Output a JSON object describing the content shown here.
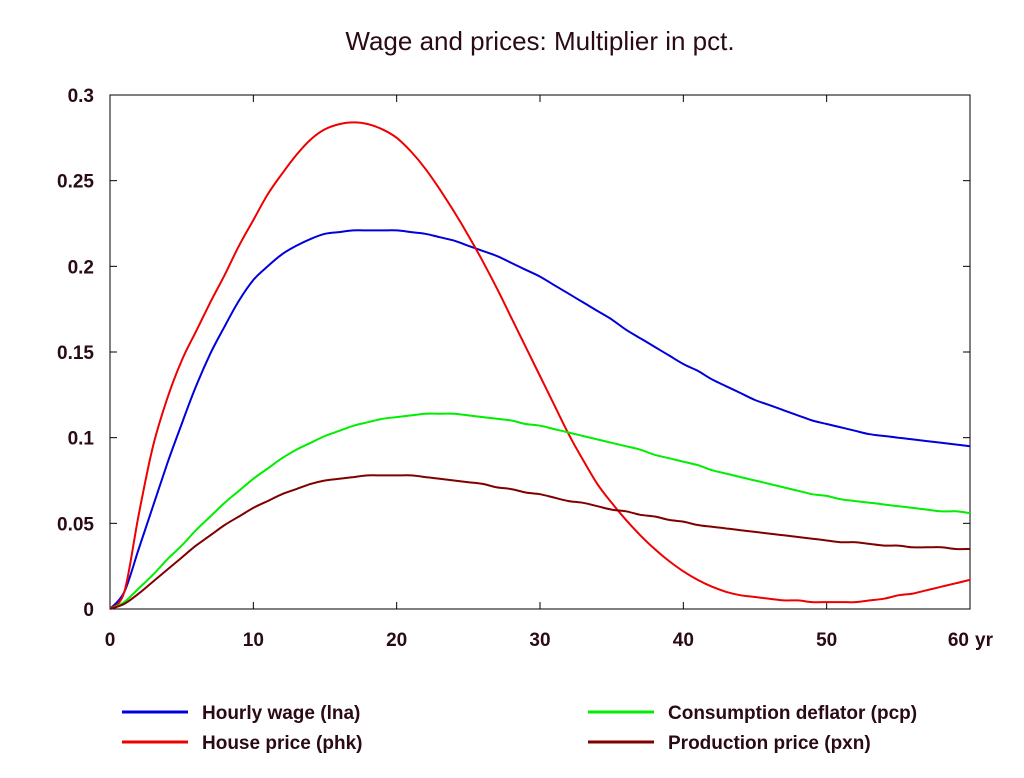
{
  "chart_data": {
    "type": "line",
    "title": "Wage and prices: Multiplier in pct.",
    "x_unit_label": "yr",
    "xlim": [
      0,
      60
    ],
    "ylim": [
      0,
      0.3
    ],
    "x_ticks": [
      0,
      10,
      20,
      30,
      40,
      50,
      60
    ],
    "y_ticks": [
      0,
      0.05,
      0.1,
      0.15,
      0.2,
      0.25,
      0.3
    ],
    "y_tick_labels": [
      "0",
      "0.05",
      "0.1",
      "0.15",
      "0.2",
      "0.25",
      "0.3"
    ],
    "x_tick_labels": [
      "0",
      "10",
      "20",
      "30",
      "40",
      "50",
      "60"
    ],
    "grid": false,
    "legend_position": "bottom",
    "x": [
      0,
      1,
      2,
      3,
      4,
      5,
      6,
      7,
      8,
      9,
      10,
      11,
      12,
      13,
      14,
      15,
      16,
      17,
      18,
      19,
      20,
      21,
      22,
      23,
      24,
      25,
      26,
      27,
      28,
      29,
      30,
      31,
      32,
      33,
      34,
      35,
      36,
      37,
      38,
      39,
      40,
      41,
      42,
      43,
      44,
      45,
      46,
      47,
      48,
      49,
      50,
      51,
      52,
      53,
      54,
      55,
      56,
      57,
      58,
      59,
      60
    ],
    "series": [
      {
        "name": "Hourly wage (lna)",
        "color": "#0000dd",
        "values": [
          0,
          0.01,
          0.035,
          0.06,
          0.085,
          0.108,
          0.13,
          0.149,
          0.165,
          0.18,
          0.192,
          0.2,
          0.207,
          0.212,
          0.216,
          0.219,
          0.22,
          0.221,
          0.221,
          0.221,
          0.221,
          0.22,
          0.219,
          0.217,
          0.215,
          0.212,
          0.209,
          0.206,
          0.202,
          0.198,
          0.194,
          0.189,
          0.184,
          0.179,
          0.174,
          0.169,
          0.163,
          0.158,
          0.153,
          0.148,
          0.143,
          0.139,
          0.134,
          0.13,
          0.126,
          0.122,
          0.119,
          0.116,
          0.113,
          0.11,
          0.108,
          0.106,
          0.104,
          0.102,
          0.101,
          0.1,
          0.099,
          0.098,
          0.097,
          0.096,
          0.095
        ]
      },
      {
        "name": "House price (phk)",
        "color": "#ee0000",
        "values": [
          0,
          0.01,
          0.055,
          0.095,
          0.123,
          0.145,
          0.162,
          0.179,
          0.195,
          0.212,
          0.227,
          0.242,
          0.254,
          0.265,
          0.274,
          0.28,
          0.283,
          0.284,
          0.283,
          0.28,
          0.275,
          0.267,
          0.257,
          0.245,
          0.232,
          0.218,
          0.203,
          0.187,
          0.17,
          0.153,
          0.136,
          0.119,
          0.102,
          0.087,
          0.073,
          0.062,
          0.052,
          0.043,
          0.035,
          0.028,
          0.022,
          0.017,
          0.013,
          0.01,
          0.008,
          0.007,
          0.006,
          0.005,
          0.005,
          0.004,
          0.004,
          0.004,
          0.004,
          0.005,
          0.006,
          0.008,
          0.009,
          0.011,
          0.013,
          0.015,
          0.017
        ]
      },
      {
        "name": "Consumption deflator (pcp)",
        "color": "#00ee00",
        "values": [
          0,
          0.004,
          0.012,
          0.02,
          0.029,
          0.037,
          0.046,
          0.054,
          0.062,
          0.069,
          0.076,
          0.082,
          0.088,
          0.093,
          0.097,
          0.101,
          0.104,
          0.107,
          0.109,
          0.111,
          0.112,
          0.113,
          0.114,
          0.114,
          0.114,
          0.113,
          0.112,
          0.111,
          0.11,
          0.108,
          0.107,
          0.105,
          0.103,
          0.101,
          0.099,
          0.097,
          0.095,
          0.093,
          0.09,
          0.088,
          0.086,
          0.084,
          0.081,
          0.079,
          0.077,
          0.075,
          0.073,
          0.071,
          0.069,
          0.067,
          0.066,
          0.064,
          0.063,
          0.062,
          0.061,
          0.06,
          0.059,
          0.058,
          0.057,
          0.057,
          0.056
        ]
      },
      {
        "name": "Production price (pxn)",
        "color": "#800000",
        "values": [
          0,
          0.003,
          0.009,
          0.016,
          0.023,
          0.03,
          0.037,
          0.043,
          0.049,
          0.054,
          0.059,
          0.063,
          0.067,
          0.07,
          0.073,
          0.075,
          0.076,
          0.077,
          0.078,
          0.078,
          0.078,
          0.078,
          0.077,
          0.076,
          0.075,
          0.074,
          0.073,
          0.071,
          0.07,
          0.068,
          0.067,
          0.065,
          0.063,
          0.062,
          0.06,
          0.058,
          0.057,
          0.055,
          0.054,
          0.052,
          0.051,
          0.049,
          0.048,
          0.047,
          0.046,
          0.045,
          0.044,
          0.043,
          0.042,
          0.041,
          0.04,
          0.039,
          0.039,
          0.038,
          0.037,
          0.037,
          0.036,
          0.036,
          0.036,
          0.035,
          0.035
        ]
      }
    ]
  }
}
